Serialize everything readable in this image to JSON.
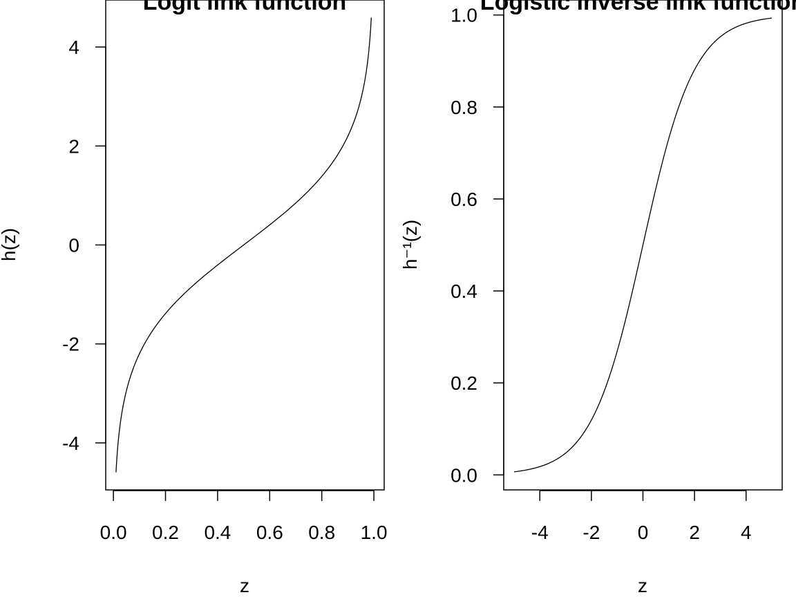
{
  "chart_data": [
    {
      "type": "line",
      "title": "Logit link function",
      "xlabel": "z",
      "ylabel": "h(z)",
      "xlim": [
        -0.0295,
        1.0395
      ],
      "ylim": [
        -4.95,
        4.95
      ],
      "xticks": [
        0.0,
        0.2,
        0.4,
        0.6,
        0.8,
        1.0
      ],
      "xtick_labels": [
        "0.0",
        "0.2",
        "0.4",
        "0.6",
        "0.8",
        "1.0"
      ],
      "yticks": [
        -4,
        -2,
        0,
        2,
        4
      ],
      "ytick_labels": [
        "-4",
        "-2",
        "0",
        "2",
        "4"
      ],
      "function": "logit",
      "x_range": [
        0.01,
        0.99
      ],
      "grid": false,
      "series": [
        {
          "x": [
            0.01,
            0.02,
            0.03,
            0.05,
            0.07,
            0.1,
            0.15,
            0.2,
            0.3,
            0.4,
            0.5,
            0.6,
            0.7,
            0.8,
            0.85,
            0.9,
            0.93,
            0.95,
            0.97,
            0.98,
            0.99
          ],
          "y": [
            -4.6,
            -3.89,
            -3.48,
            -2.94,
            -2.59,
            -2.2,
            -1.73,
            -1.39,
            -0.85,
            -0.41,
            0,
            0.41,
            0.85,
            1.39,
            1.73,
            2.2,
            2.59,
            2.94,
            3.48,
            3.89,
            4.6
          ]
        }
      ]
    },
    {
      "type": "line",
      "title": "Logistic inverse link function",
      "xlabel": "z",
      "ylabel": "h⁻¹(z)",
      "xlim": [
        -5.4,
        5.4
      ],
      "ylim": [
        -0.0326,
        1.0326
      ],
      "xticks": [
        -4,
        -2,
        0,
        2,
        4
      ],
      "xtick_labels": [
        "-4",
        "-2",
        "0",
        "2",
        "4"
      ],
      "yticks": [
        0.0,
        0.2,
        0.4,
        0.6,
        0.8,
        1.0
      ],
      "ytick_labels": [
        "0.0",
        "0.2",
        "0.4",
        "0.6",
        "0.8",
        "1.0"
      ],
      "function": "logistic",
      "x_range": [
        -5,
        5
      ],
      "grid": false,
      "series": [
        {
          "x": [
            -5,
            -4,
            -3,
            -2,
            -1.5,
            -1,
            -0.5,
            0,
            0.5,
            1,
            1.5,
            2,
            3,
            4,
            5
          ],
          "y": [
            0.0067,
            0.018,
            0.047,
            0.119,
            0.182,
            0.269,
            0.378,
            0.5,
            0.622,
            0.731,
            0.818,
            0.881,
            0.953,
            0.982,
            0.9933
          ]
        }
      ]
    }
  ]
}
